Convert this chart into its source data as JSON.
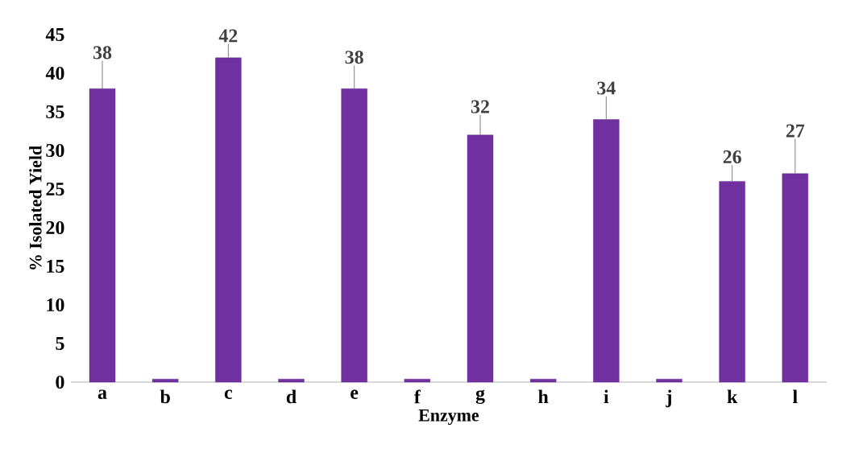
{
  "chart_data": {
    "type": "bar",
    "xlabel": "Enzyme",
    "ylabel": "% Isolated Yield",
    "categories": [
      "a",
      "b",
      "c",
      "d",
      "e",
      "f",
      "g",
      "h",
      "i",
      "j",
      "k",
      "l"
    ],
    "values": [
      38,
      0.4,
      42,
      0.4,
      38,
      0.4,
      32,
      0.4,
      34,
      0.4,
      26,
      27
    ],
    "errors": [
      [
        38,
        41.6
      ],
      null,
      [
        42,
        43.8
      ],
      null,
      [
        38,
        41
      ],
      null,
      [
        32,
        34.6
      ],
      null,
      [
        34,
        37
      ],
      null,
      [
        26,
        28.1
      ],
      [
        27,
        31.5
      ]
    ],
    "value_labels": [
      "38",
      null,
      "42",
      null,
      "38",
      null,
      "32",
      null,
      "34",
      null,
      "26",
      "27"
    ],
    "color": "#7030a0",
    "ylim": [
      0,
      45
    ],
    "yticks": [
      0,
      5,
      10,
      15,
      20,
      25,
      30,
      35,
      40,
      45
    ]
  }
}
